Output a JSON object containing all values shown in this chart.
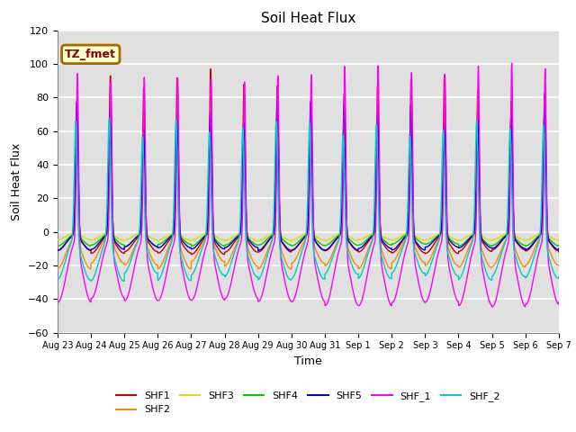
{
  "title": "Soil Heat Flux",
  "xlabel": "Time",
  "ylabel": "Soil Heat Flux",
  "ylim": [
    -60,
    120
  ],
  "yticks": [
    -60,
    -40,
    -20,
    0,
    20,
    40,
    60,
    80,
    100,
    120
  ],
  "tick_labels": [
    "Aug 23",
    "Aug 24",
    "Aug 25",
    "Aug 26",
    "Aug 27",
    "Aug 28",
    "Aug 29",
    "Aug 30",
    "Aug 31",
    "Sep 1",
    "Sep 2",
    "Sep 3",
    "Sep 4",
    "Sep 5",
    "Sep 6",
    "Sep 7"
  ],
  "series_colors": {
    "SHF1": "#cc0000",
    "SHF2": "#ff8800",
    "SHF3": "#dddd00",
    "SHF4": "#00cc00",
    "SHF5": "#0000cc",
    "SHF_1": "#ff00ff",
    "SHF_2": "#00cccc"
  },
  "annotation_text": "TZ_fmet",
  "annotation_bg": "#ffffcc",
  "annotation_border": "#aa6600",
  "background_color": "#e0e0e0",
  "grid_color": "#ffffff",
  "title_fontsize": 11,
  "lw": 1.0
}
